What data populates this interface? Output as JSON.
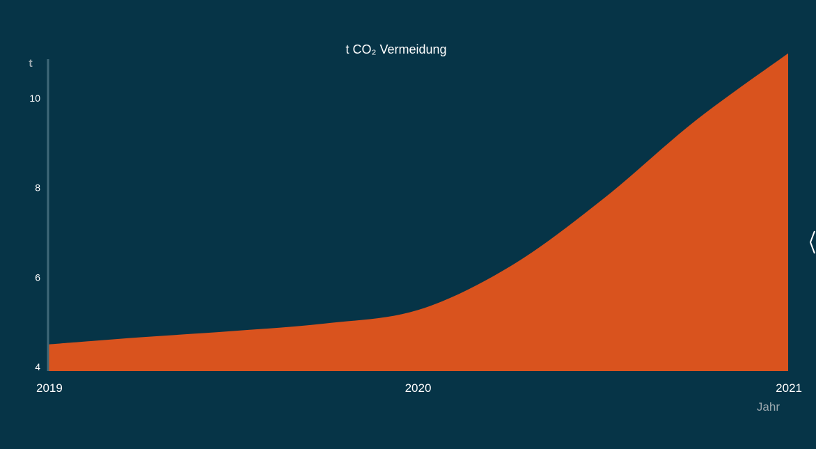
{
  "chart_data": {
    "type": "area",
    "title": "t CO₂ Vermeidung",
    "ylabel": "t",
    "xlabel": "Jahr",
    "x_ticks": [
      "2019",
      "2020",
      "2021"
    ],
    "y_ticks": [
      4,
      6,
      8,
      10
    ],
    "ylim": [
      4,
      11
    ],
    "xlim": [
      2019,
      2021
    ],
    "grid": false,
    "series": [
      {
        "color": "#d9531e",
        "points": [
          {
            "x": 2019.0,
            "y": 4.5
          },
          {
            "x": 2019.25,
            "y": 4.66
          },
          {
            "x": 2019.5,
            "y": 4.8
          },
          {
            "x": 2019.75,
            "y": 4.97
          },
          {
            "x": 2020.0,
            "y": 5.27
          },
          {
            "x": 2020.25,
            "y": 6.25
          },
          {
            "x": 2020.5,
            "y": 7.75
          },
          {
            "x": 2020.75,
            "y": 9.5
          },
          {
            "x": 2021.0,
            "y": 11.0
          }
        ]
      }
    ]
  },
  "colors": {
    "background": "#063447",
    "area": "#d9531e",
    "axis": "#3f6878",
    "text": "#ffffff",
    "muted": "#9aa7ae"
  },
  "controls": {
    "next_icon": "chevron-right-icon"
  }
}
